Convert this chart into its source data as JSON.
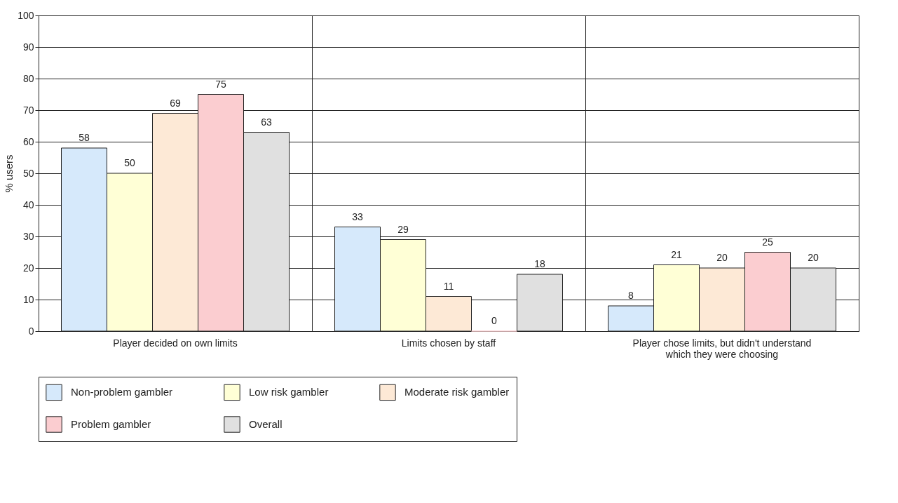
{
  "chart_data": {
    "type": "bar",
    "ylabel": "% users",
    "categories": [
      "Player decided on own limits",
      "Limits chosen by staff",
      "Player chose limits, but didn't understand which they were choosing"
    ],
    "series": [
      {
        "name": "Non-problem gambler",
        "color": "#d6e9fb",
        "values": [
          58,
          33,
          8
        ]
      },
      {
        "name": "Low risk gambler",
        "color": "#ffffd6",
        "values": [
          50,
          29,
          21
        ]
      },
      {
        "name": "Moderate risk gambler",
        "color": "#fde9d6",
        "values": [
          69,
          11,
          20
        ]
      },
      {
        "name": "Problem gambler",
        "color": "#fbcdd0",
        "values": [
          75,
          0,
          25
        ]
      },
      {
        "name": "Overall",
        "color": "#e0e0e0",
        "values": [
          63,
          18,
          20
        ]
      }
    ],
    "ylim": [
      0,
      100
    ],
    "yticks": [
      0,
      10,
      20,
      30,
      40,
      50,
      60,
      70,
      80,
      90,
      100
    ],
    "grid": true,
    "legend": "bottom",
    "data_labels": true
  }
}
